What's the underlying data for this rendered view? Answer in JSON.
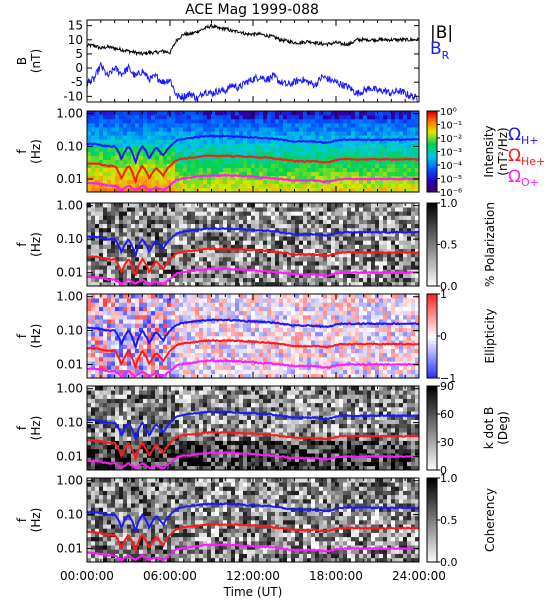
{
  "title": "ACE Mag 1999-088",
  "xaxis": {
    "label": "Time (UT)",
    "range_hours": [
      0,
      24
    ],
    "ticks": [
      {
        "hour": 0,
        "label": "00:00:00"
      },
      {
        "hour": 6,
        "label": "06:00:00"
      },
      {
        "hour": 12,
        "label": "12:00:00"
      },
      {
        "hour": 18,
        "label": "18:00:00"
      },
      {
        "hour": 24,
        "label": "24:00:00"
      }
    ]
  },
  "colors": {
    "B_total": "#000000",
    "B_R": "#1a1aff",
    "H_plus": "#1a1aff",
    "He_plus": "#ff1a1a",
    "O_plus": "#ff1aff"
  },
  "chart_data": [
    {
      "type": "line",
      "ylabel": "B",
      "yunit": "(nT)",
      "ylim": [
        -12,
        17
      ],
      "yticks": [
        15,
        10,
        5,
        0,
        -5,
        -10
      ],
      "legend": [
        {
          "label": "|B|",
          "color": "#000000"
        },
        {
          "label": "B",
          "sub": "R",
          "color": "#1a1aff"
        }
      ],
      "series": [
        {
          "name": "|B|",
          "x": [
            0,
            0.5,
            1,
            1.5,
            2,
            2.5,
            3,
            3.5,
            4,
            4.5,
            5,
            5.5,
            6,
            6.5,
            7,
            7.5,
            8,
            8.5,
            9,
            9.5,
            10,
            10.5,
            11,
            11.5,
            12,
            12.5,
            13,
            13.5,
            14,
            14.5,
            15,
            15.5,
            16,
            16.5,
            17,
            17.5,
            18,
            18.5,
            19,
            19.5,
            20,
            20.5,
            21,
            21.5,
            22,
            22.5,
            23,
            23.5,
            24
          ],
          "values": [
            8,
            8,
            7,
            7.5,
            7,
            6.5,
            6,
            5.5,
            5,
            5.5,
            5.5,
            6,
            5.5,
            10,
            12,
            12,
            13,
            14,
            15,
            14,
            14,
            13,
            13,
            12,
            12,
            12,
            11.5,
            11,
            10,
            9.5,
            9,
            9,
            9.5,
            9,
            8.5,
            8.5,
            9,
            8.5,
            8.5,
            10,
            10,
            10,
            10,
            10,
            10,
            10,
            10,
            10,
            10
          ]
        },
        {
          "name": "B_R",
          "x": [
            0,
            0.5,
            1,
            1.5,
            2,
            2.5,
            3,
            3.5,
            4,
            4.5,
            5,
            5.5,
            6,
            6.5,
            7,
            7.5,
            8,
            8.5,
            9,
            9.5,
            10,
            10.5,
            11,
            11.5,
            12,
            12.5,
            13,
            13.5,
            14,
            14.5,
            15,
            15.5,
            16,
            16.5,
            17,
            17.5,
            18,
            18.5,
            19,
            19.5,
            20,
            20.5,
            21,
            21.5,
            22,
            22.5,
            23,
            23.5,
            24
          ],
          "values": [
            -5,
            -4,
            1,
            -3,
            0,
            -2,
            0,
            -3,
            -1,
            -4,
            -3,
            -5,
            -4,
            -10,
            -10,
            -9,
            -11,
            -8,
            -9,
            -8,
            -8,
            -6,
            -7,
            -5,
            -4,
            -3,
            -4,
            -3,
            -5,
            -6,
            -5,
            -4,
            -5,
            -6,
            -3,
            -4,
            -5,
            -6,
            -7,
            -9,
            -8,
            -7,
            -8,
            -8,
            -9,
            -8,
            -9,
            -10,
            -11
          ]
        }
      ]
    },
    {
      "type": "heatmap",
      "ylabel": "f",
      "yunit": "(Hz)",
      "yscale": "log",
      "ylim": [
        0.004,
        1.2
      ],
      "yticks": [
        1.0,
        0.1,
        0.01
      ],
      "yticklabels": [
        "1.00",
        "0.10",
        "0.01"
      ],
      "colorbar": {
        "label": "Intensity",
        "unit": "(nT²/Hz)",
        "scale": "log",
        "range": [
          1e-06,
          1
        ],
        "ticks": [
          1,
          0.1,
          0.01,
          0.001,
          0.0001,
          1e-05,
          1e-06
        ],
        "ticklabels": [
          "10⁰",
          "10⁻¹",
          "10⁻²",
          "10⁻³",
          "10⁻⁴",
          "10⁻⁵",
          "10⁻⁶"
        ],
        "colormap": "rainbow"
      },
      "legend": [
        {
          "label": "Ω",
          "sub": "H+",
          "color": "#1a1aff"
        },
        {
          "label": "Ω",
          "sub": "He+",
          "color": "#ff1a1a"
        },
        {
          "label": "Ω",
          "sub": "O+",
          "color": "#ff1aff"
        }
      ]
    },
    {
      "type": "heatmap",
      "ylabel": "f",
      "yunit": "(Hz)",
      "yscale": "log",
      "ylim": [
        0.004,
        1.2
      ],
      "yticks": [
        1.0,
        0.1,
        0.01
      ],
      "yticklabels": [
        "1.00",
        "0.10",
        "0.01"
      ],
      "colorbar": {
        "label": "% Polarization",
        "unit": "",
        "range": [
          0,
          1
        ],
        "ticks": [
          1.0,
          0.5,
          0.0
        ],
        "ticklabels": [
          "1.0",
          "0.5",
          "0.0"
        ],
        "colormap": "gray"
      }
    },
    {
      "type": "heatmap",
      "ylabel": "f",
      "yunit": "(Hz)",
      "yscale": "log",
      "ylim": [
        0.004,
        1.2
      ],
      "yticks": [
        1.0,
        0.1,
        0.01
      ],
      "yticklabels": [
        "1.00",
        "0.10",
        "0.01"
      ],
      "colorbar": {
        "label": "Ellipticity",
        "unit": "",
        "range": [
          -1,
          1
        ],
        "ticks": [
          1,
          0,
          -1
        ],
        "ticklabels": [
          "1",
          "0",
          "−1"
        ],
        "colormap": "bwr"
      }
    },
    {
      "type": "heatmap",
      "ylabel": "f",
      "yunit": "(Hz)",
      "yscale": "log",
      "ylim": [
        0.004,
        1.2
      ],
      "yticks": [
        1.0,
        0.1,
        0.01
      ],
      "yticklabels": [
        "1.00",
        "0.10",
        "0.01"
      ],
      "colorbar": {
        "label": "k dot B",
        "unit": "(Deg)",
        "range": [
          0,
          90
        ],
        "ticks": [
          90,
          60,
          30,
          0
        ],
        "ticklabels": [
          "90",
          "60",
          "30",
          "0"
        ],
        "colormap": "gray"
      }
    },
    {
      "type": "heatmap",
      "ylabel": "f",
      "yunit": "(Hz)",
      "yscale": "log",
      "ylim": [
        0.004,
        1.2
      ],
      "yticks": [
        1.0,
        0.1,
        0.01
      ],
      "yticklabels": [
        "1.00",
        "0.10",
        "0.01"
      ],
      "colorbar": {
        "label": "Coherency",
        "unit": "",
        "range": [
          0,
          1
        ],
        "ticks": [
          1.0,
          0.5,
          0.0
        ],
        "ticklabels": [
          "1.0",
          "0.5",
          "0.0"
        ],
        "colormap": "gray"
      }
    }
  ],
  "gyrofrequency_lines": [
    {
      "name": "Ω_H+",
      "color": "#1a1aff",
      "x": [
        0,
        0.5,
        1,
        1.5,
        2,
        2.5,
        3,
        3.5,
        4,
        4.5,
        5,
        5.5,
        6,
        6.5,
        7,
        7.5,
        8,
        8.5,
        9,
        9.5,
        10,
        10.5,
        11,
        11.5,
        12,
        12.5,
        13,
        13.5,
        14,
        14.5,
        15,
        15.5,
        16,
        16.5,
        17,
        17.5,
        18,
        18.5,
        19,
        19.5,
        20,
        20.5,
        21,
        21.5,
        22,
        22.5,
        23,
        23.5,
        24
      ],
      "values_hz": [
        0.12,
        0.12,
        0.11,
        0.1,
        0.1,
        0.04,
        0.1,
        0.03,
        0.1,
        0.04,
        0.09,
        0.05,
        0.1,
        0.15,
        0.17,
        0.18,
        0.19,
        0.2,
        0.21,
        0.2,
        0.21,
        0.2,
        0.2,
        0.19,
        0.19,
        0.18,
        0.18,
        0.17,
        0.16,
        0.15,
        0.14,
        0.14,
        0.14,
        0.14,
        0.13,
        0.13,
        0.15,
        0.16,
        0.16,
        0.16,
        0.16,
        0.16,
        0.16,
        0.16,
        0.16,
        0.16,
        0.16,
        0.16,
        0.16
      ]
    },
    {
      "name": "Ω_He+",
      "color": "#ff1a1a",
      "x": [
        0,
        0.5,
        1,
        1.5,
        2,
        2.5,
        3,
        3.5,
        4,
        4.5,
        5,
        5.5,
        6,
        6.5,
        7,
        7.5,
        8,
        8.5,
        9,
        9.5,
        10,
        10.5,
        11,
        11.5,
        12,
        12.5,
        13,
        13.5,
        14,
        14.5,
        15,
        15.5,
        16,
        16.5,
        17,
        17.5,
        18,
        18.5,
        19,
        19.5,
        20,
        20.5,
        21,
        21.5,
        22,
        22.5,
        23,
        23.5,
        24
      ],
      "values_hz": [
        0.03,
        0.03,
        0.028,
        0.025,
        0.025,
        0.01,
        0.025,
        0.008,
        0.025,
        0.01,
        0.022,
        0.012,
        0.025,
        0.038,
        0.042,
        0.045,
        0.047,
        0.05,
        0.052,
        0.05,
        0.052,
        0.05,
        0.05,
        0.048,
        0.048,
        0.045,
        0.045,
        0.042,
        0.04,
        0.038,
        0.035,
        0.035,
        0.035,
        0.035,
        0.033,
        0.033,
        0.038,
        0.04,
        0.04,
        0.04,
        0.04,
        0.04,
        0.04,
        0.04,
        0.04,
        0.04,
        0.04,
        0.04,
        0.04
      ]
    },
    {
      "name": "Ω_O+",
      "color": "#ff1aff",
      "x": [
        0,
        0.5,
        1,
        1.5,
        2,
        2.5,
        3,
        3.5,
        4,
        4.5,
        5,
        5.5,
        6,
        6.5,
        7,
        7.5,
        8,
        8.5,
        9,
        9.5,
        10,
        10.5,
        11,
        11.5,
        12,
        12.5,
        13,
        13.5,
        14,
        14.5,
        15,
        15.5,
        16,
        16.5,
        17,
        17.5,
        18,
        18.5,
        19,
        19.5,
        20,
        20.5,
        21,
        21.5,
        22,
        22.5,
        23,
        23.5,
        24
      ],
      "values_hz": [
        0.0075,
        0.0075,
        0.007,
        0.0063,
        0.0063,
        0.0045,
        0.0063,
        0.0045,
        0.0063,
        0.0045,
        0.0055,
        0.0045,
        0.0063,
        0.0095,
        0.0105,
        0.011,
        0.012,
        0.0125,
        0.013,
        0.0125,
        0.013,
        0.0125,
        0.0125,
        0.012,
        0.012,
        0.011,
        0.011,
        0.0105,
        0.01,
        0.0095,
        0.009,
        0.009,
        0.009,
        0.009,
        0.0083,
        0.0083,
        0.0095,
        0.01,
        0.01,
        0.01,
        0.01,
        0.01,
        0.01,
        0.01,
        0.01,
        0.01,
        0.01,
        0.01,
        0.01
      ]
    }
  ]
}
